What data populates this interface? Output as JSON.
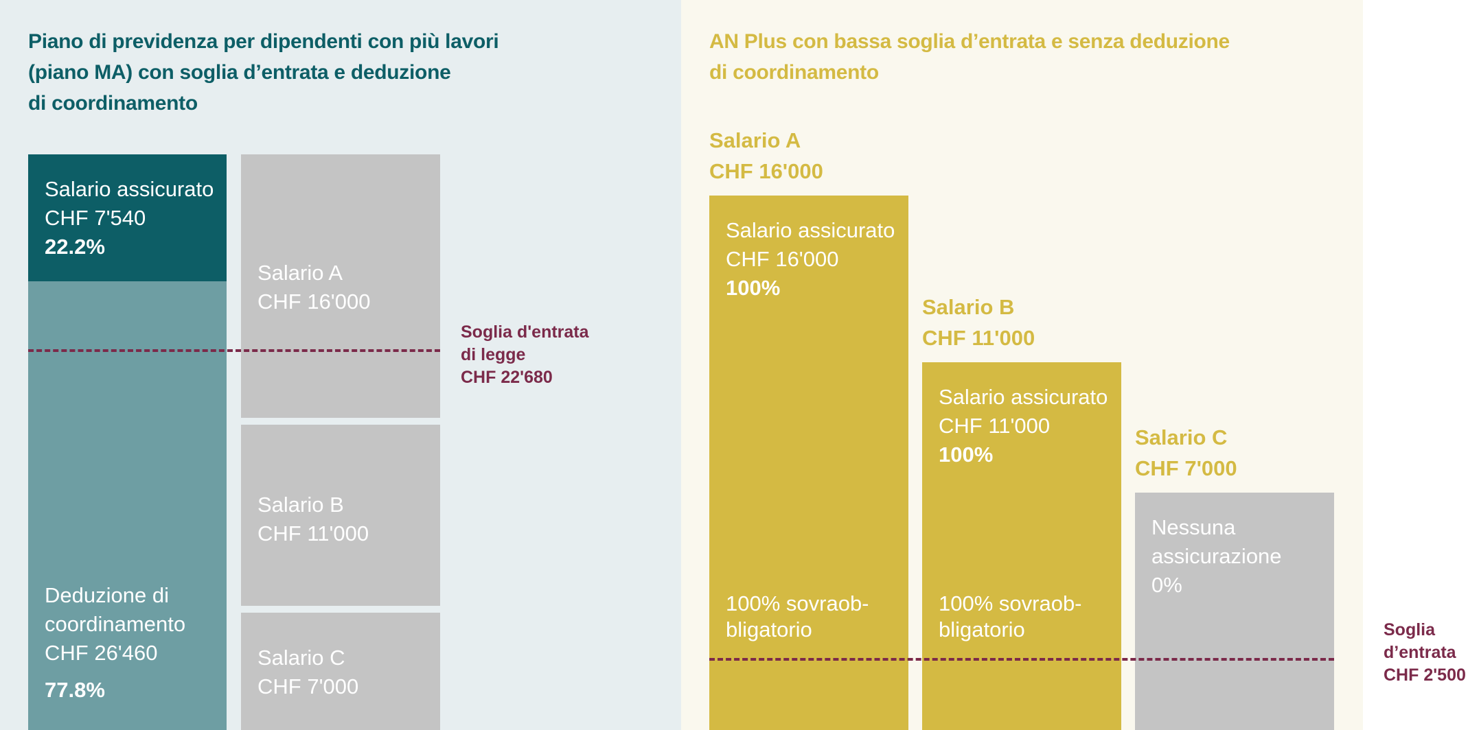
{
  "left": {
    "title_lines": [
      "Piano di previdenza per dipendenti con più lavori",
      "(piano MA) con soglia d’entrata e deduzione",
      "di coordinamento"
    ],
    "insured": {
      "label": "Salario assicurato",
      "amount": "CHF 7'540",
      "percent": "22.2%"
    },
    "deduction": {
      "label_line1": "Deduzione di",
      "label_line2": "coordinamento",
      "amount": "CHF 26'460",
      "percent": "77.8%"
    },
    "salaries": [
      {
        "name": "Salario A",
        "amount": "CHF 16'000"
      },
      {
        "name": "Salario B",
        "amount": "CHF 11'000"
      },
      {
        "name": "Salario C",
        "amount": "CHF 7'000"
      }
    ],
    "threshold": {
      "line1": "Soglia d'entrata",
      "line2": "di legge",
      "line3": "CHF 22'680"
    }
  },
  "right": {
    "title_lines": [
      "AN Plus con bassa soglia d’entrata e senza deduzione",
      "di coordinamento"
    ],
    "columns": [
      {
        "name": "Salario A",
        "amount": "CHF 16'000",
        "insured_label": "Salario assicurato",
        "insured_amount": "CHF 16'000",
        "insured_percent": "100%",
        "note_line1": "100% sovraob-",
        "note_line2": "bligatorio"
      },
      {
        "name": "Salario B",
        "amount": "CHF 11'000",
        "insured_label": "Salario assicurato",
        "insured_amount": "CHF 11'000",
        "insured_percent": "100%",
        "note_line1": "100% sovraob-",
        "note_line2": "bligatorio"
      },
      {
        "name": "Salario C",
        "amount": "CHF 7'000",
        "insured_label_line1": "Nessuna",
        "insured_label_line2": "assicurazione",
        "insured_percent": "0%"
      }
    ],
    "threshold": {
      "line1": "Soglia",
      "line2": "d’entrata",
      "line3": "CHF 2'500"
    }
  },
  "colors": {
    "left_bg": "#E7EEF0",
    "right_bg": "#FAF8EE",
    "dark_teal": "#0D5E66",
    "light_teal": "#6E9EA3",
    "gray": "#C4C4C4",
    "gold": "#D4BA43",
    "maroon": "#7B2A4A"
  }
}
